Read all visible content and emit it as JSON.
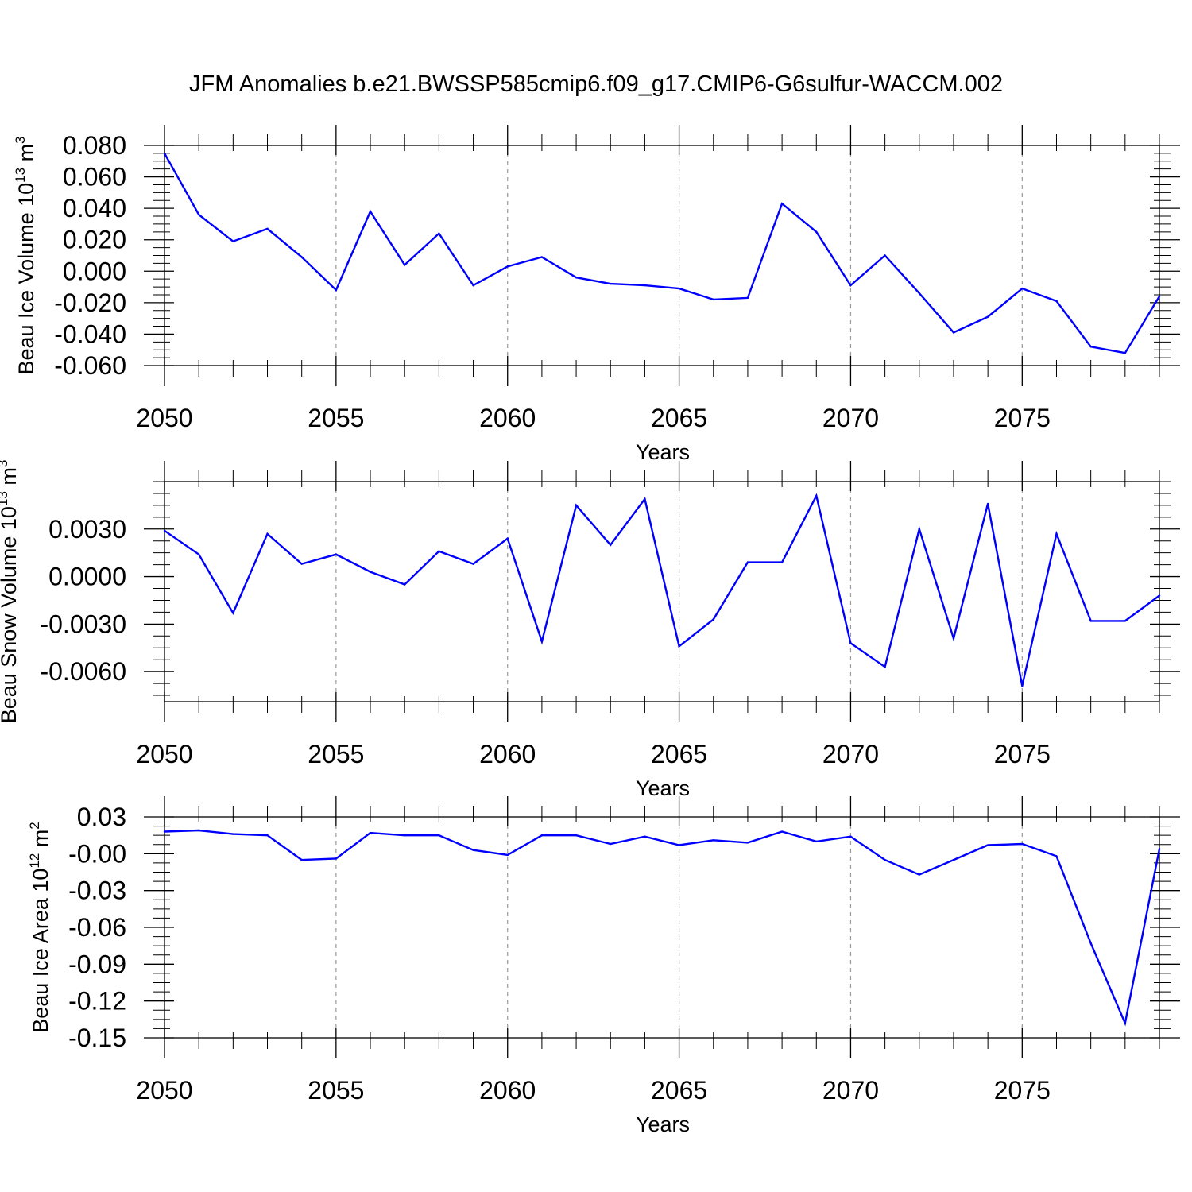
{
  "title": "JFM Anomalies b.e21.BWSSP585cmip6.f09_g17.CMIP6-G6sulfur-WACCM.002",
  "colors": {
    "series": "#0000ff",
    "frame": "#000000",
    "grid": "#9a9a9a"
  },
  "chart_data": [
    {
      "type": "line",
      "ylabel": "Beau Ice Volume 10",
      "ylabel_exp": "13",
      "ylabel_unit": " m",
      "ylabel_unit_exp": "3",
      "xlabel": "Years",
      "xlim": [
        2050,
        2079
      ],
      "ylim": [
        -0.06,
        0.08
      ],
      "yticks": [
        -0.06,
        -0.04,
        -0.02,
        0.0,
        0.02,
        0.04,
        0.06,
        0.08
      ],
      "ytick_labels": [
        "-0.060",
        "-0.040",
        "-0.020",
        "0.000",
        "0.020",
        "0.040",
        "0.060",
        "0.080"
      ],
      "xticks": [
        2050,
        2055,
        2060,
        2065,
        2070,
        2075
      ],
      "xtick_labels": [
        "2050",
        "2055",
        "2060",
        "2065",
        "2070",
        "2075"
      ],
      "x": [
        2050,
        2051,
        2052,
        2053,
        2054,
        2055,
        2056,
        2057,
        2058,
        2059,
        2060,
        2061,
        2062,
        2063,
        2064,
        2065,
        2066,
        2067,
        2068,
        2069,
        2070,
        2071,
        2072,
        2073,
        2074,
        2075,
        2076,
        2077,
        2078,
        2079
      ],
      "values": [
        0.075,
        0.036,
        0.019,
        0.027,
        0.009,
        -0.012,
        0.038,
        0.004,
        0.024,
        -0.009,
        0.003,
        0.009,
        -0.004,
        -0.008,
        -0.009,
        -0.011,
        -0.018,
        -0.017,
        0.043,
        0.025,
        -0.009,
        0.01,
        -0.014,
        -0.039,
        -0.029,
        -0.011,
        -0.019,
        -0.048,
        -0.052,
        -0.016
      ]
    },
    {
      "type": "line",
      "ylabel": "Beau Snow Volume 10",
      "ylabel_exp": "13",
      "ylabel_unit": " m",
      "ylabel_unit_exp": "3",
      "xlabel": "Years",
      "xlim": [
        2050,
        2079
      ],
      "ylim": [
        -0.0079,
        0.006
      ],
      "yticks": [
        -0.006,
        -0.003,
        0.0,
        0.003
      ],
      "ytick_labels": [
        "-0.0060",
        "-0.0030",
        "0.0000",
        "0.0030"
      ],
      "xticks": [
        2050,
        2055,
        2060,
        2065,
        2070,
        2075
      ],
      "xtick_labels": [
        "2050",
        "2055",
        "2060",
        "2065",
        "2070",
        "2075"
      ],
      "x": [
        2050,
        2051,
        2052,
        2053,
        2054,
        2055,
        2056,
        2057,
        2058,
        2059,
        2060,
        2061,
        2062,
        2063,
        2064,
        2065,
        2066,
        2067,
        2068,
        2069,
        2070,
        2071,
        2072,
        2073,
        2074,
        2075,
        2076,
        2077,
        2078,
        2079
      ],
      "values": [
        0.0029,
        0.0014,
        -0.0023,
        0.0027,
        0.0008,
        0.0014,
        0.0003,
        -0.0005,
        0.0016,
        0.0008,
        0.0024,
        -0.0041,
        0.0045,
        0.002,
        0.0049,
        -0.0044,
        -0.0027,
        0.0009,
        0.0009,
        0.0051,
        -0.0042,
        -0.0057,
        0.003,
        -0.0039,
        0.0046,
        -0.0069,
        0.0027,
        -0.0028,
        -0.0028,
        -0.0012
      ]
    },
    {
      "type": "line",
      "ylabel": "Beau Ice Area 10",
      "ylabel_exp": "12",
      "ylabel_unit": " m",
      "ylabel_unit_exp": "2",
      "xlabel": "Years",
      "xlim": [
        2050,
        2079
      ],
      "ylim": [
        -0.15,
        0.03
      ],
      "yticks": [
        -0.15,
        -0.12,
        -0.09,
        -0.06,
        -0.03,
        0.0,
        0.03
      ],
      "ytick_labels": [
        "-0.15",
        "-0.12",
        "-0.09",
        "-0.06",
        "-0.03",
        "-0.00",
        "0.03"
      ],
      "xticks": [
        2050,
        2055,
        2060,
        2065,
        2070,
        2075
      ],
      "xtick_labels": [
        "2050",
        "2055",
        "2060",
        "2065",
        "2070",
        "2075"
      ],
      "x": [
        2050,
        2051,
        2052,
        2053,
        2054,
        2055,
        2056,
        2057,
        2058,
        2059,
        2060,
        2061,
        2062,
        2063,
        2064,
        2065,
        2066,
        2067,
        2068,
        2069,
        2070,
        2071,
        2072,
        2073,
        2074,
        2075,
        2076,
        2077,
        2078,
        2079
      ],
      "values": [
        0.018,
        0.019,
        0.016,
        0.015,
        -0.005,
        -0.004,
        0.017,
        0.015,
        0.015,
        0.003,
        -0.001,
        0.015,
        0.015,
        0.008,
        0.014,
        0.007,
        0.011,
        0.009,
        0.018,
        0.01,
        0.014,
        -0.005,
        -0.017,
        -0.005,
        0.007,
        0.008,
        -0.002,
        -0.073,
        -0.138,
        0.004
      ]
    }
  ]
}
